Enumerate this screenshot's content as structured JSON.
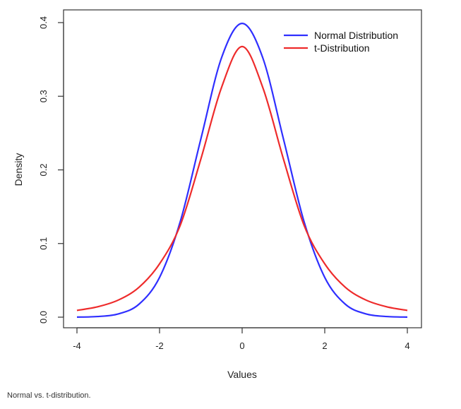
{
  "caption": "Normal vs. t-distribution.",
  "chart_data": {
    "type": "line",
    "title": "",
    "xlabel": "Values",
    "ylabel": "Density",
    "xlim": [
      -4,
      4
    ],
    "ylim": [
      0,
      0.4
    ],
    "x_ticks": [
      -4,
      -2,
      0,
      2,
      4
    ],
    "x_tick_labels": [
      "-4",
      "-2",
      "0",
      "2",
      "4"
    ],
    "y_ticks": [
      0.0,
      0.1,
      0.2,
      0.3,
      0.4
    ],
    "y_tick_labels": [
      "0.0",
      "0.1",
      "0.2",
      "0.3",
      "0.4"
    ],
    "grid": false,
    "legend_position": "top-right",
    "x": [
      -4,
      -3.5,
      -3,
      -2.5,
      -2,
      -1.5,
      -1,
      -0.5,
      0,
      0.5,
      1,
      1.5,
      2,
      2.5,
      3,
      3.5,
      4
    ],
    "series": [
      {
        "name": "Normal Distribution",
        "color": "#2f2fff",
        "values": [
          0.0001,
          0.0009,
          0.0044,
          0.0175,
          0.054,
          0.1295,
          0.242,
          0.3521,
          0.3989,
          0.3521,
          0.242,
          0.1295,
          0.054,
          0.0175,
          0.0044,
          0.0009,
          0.0001
        ]
      },
      {
        "name": "t-Distribution",
        "color": "#ee2b2b",
        "values": [
          0.0092,
          0.0141,
          0.0232,
          0.0405,
          0.0724,
          0.1246,
          0.2147,
          0.3118,
          0.3675,
          0.3118,
          0.2147,
          0.1246,
          0.0724,
          0.0405,
          0.0232,
          0.0141,
          0.0092
        ]
      }
    ]
  }
}
